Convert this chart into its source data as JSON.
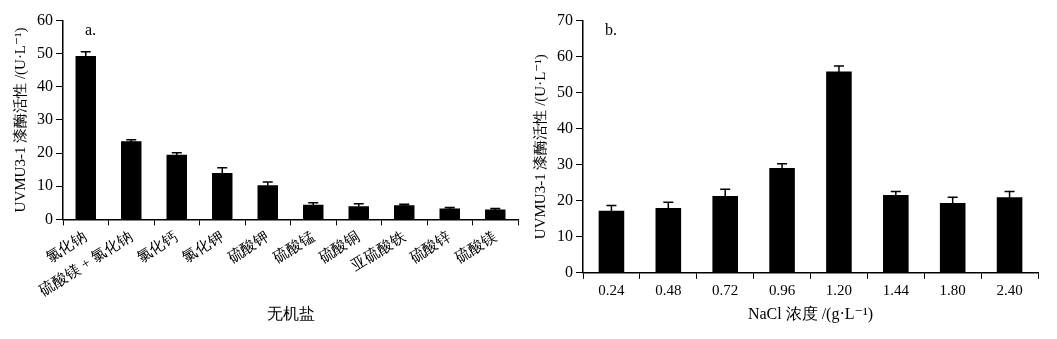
{
  "chart_data": [
    {
      "type": "bar",
      "annotations": [
        "a."
      ],
      "xlabel": "无机盐",
      "ylabel": "UVMU3-1 漆酶活性 /(U·L⁻¹)",
      "categories": [
        "氯化钠",
        "硫酸镁 + 氯化钠",
        "氯化钙",
        "氯化钾",
        "硫酸钾",
        "硫酸锰",
        "硫酸铜",
        "亚硫酸铁",
        "硫酸锌",
        "硫酸镁"
      ],
      "values": [
        49.3,
        23.6,
        19.5,
        14,
        10.3,
        4.4,
        4,
        4.3,
        3.3,
        3.0
      ],
      "errors": [
        1.3,
        0.4,
        0.6,
        1.6,
        1,
        0.6,
        0.7,
        0.3,
        0.3,
        0.3
      ],
      "color": "#000000",
      "ylim": [
        0,
        60
      ],
      "yticks": [
        0,
        10,
        20,
        30,
        40,
        50,
        60
      ],
      "grid": false,
      "legend": false
    },
    {
      "type": "bar",
      "annotations": [
        "b."
      ],
      "xlabel": "NaCl 浓度 /(g·L⁻¹)",
      "ylabel": "UVMU3-1 漆酶活性 /(U·L⁻¹)",
      "categories": [
        "0.24",
        "0.48",
        "0.72",
        "0.96",
        "1.20",
        "1.44",
        "1.80",
        "2.40"
      ],
      "values": [
        17.2,
        18,
        21.3,
        29.1,
        55.9,
        21.6,
        19.4,
        21
      ],
      "errors": [
        1.5,
        1.6,
        1.9,
        1.2,
        1.5,
        1,
        1.6,
        1.6
      ],
      "color": "#000000",
      "ylim": [
        0,
        70
      ],
      "yticks": [
        0,
        10,
        20,
        30,
        40,
        50,
        60,
        70
      ],
      "grid": false,
      "legend": false
    }
  ]
}
